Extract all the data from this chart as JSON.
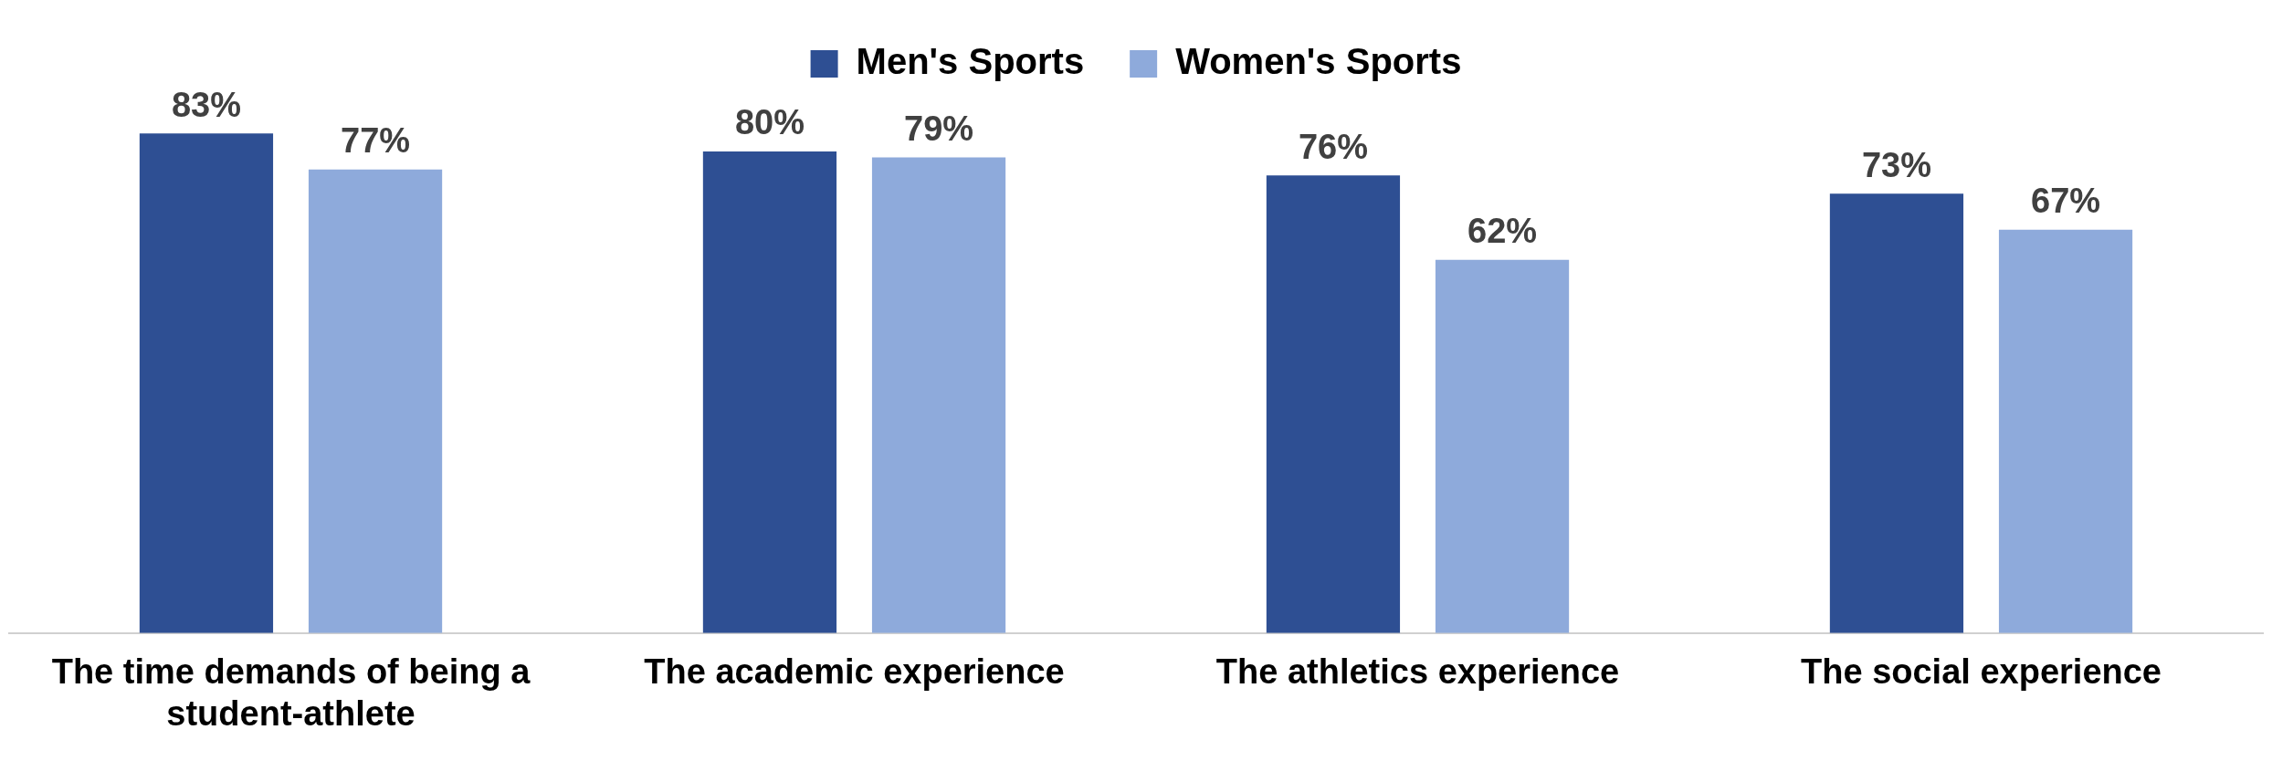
{
  "chart_data": {
    "type": "bar",
    "categories": [
      "The time demands of being a student-athlete",
      "The academic experience",
      "The athletics experience",
      "The social experience"
    ],
    "series": [
      {
        "name": "Men's Sports",
        "color": "#2e4f93",
        "values": [
          83,
          80,
          76,
          73
        ],
        "value_labels": [
          "83%",
          "80%",
          "76%",
          "73%"
        ]
      },
      {
        "name": "Women's Sports",
        "color": "#8eaadb",
        "values": [
          77,
          79,
          62,
          67
        ],
        "value_labels": [
          "77%",
          "79%",
          "62%",
          "67%"
        ]
      }
    ],
    "tick_labels": "x",
    "grid": false,
    "legend": "top"
  }
}
